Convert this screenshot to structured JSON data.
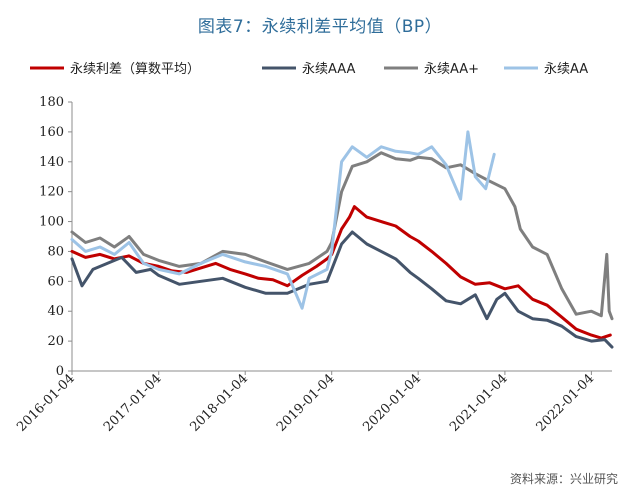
{
  "title": "图表7：永续利差平均值（BP）",
  "source": "资料来源：兴业研究",
  "chart_data": {
    "type": "line",
    "x_type": "date",
    "x_ticks": [
      "2016-01-04",
      "2017-01-04",
      "2018-01-04",
      "2019-01-04",
      "2020-01-04",
      "2021-01-04",
      "2022-01-04"
    ],
    "ylim": [
      0,
      180
    ],
    "y_ticks": [
      0,
      20,
      40,
      60,
      80,
      100,
      120,
      140,
      160,
      180
    ],
    "xlim": [
      "2016-01-04",
      "2022-04-01"
    ],
    "legend_position": "top",
    "grid": false,
    "series": [
      {
        "name": "永续利差（算数平均）",
        "color": "#c00000",
        "width": 3,
        "points": [
          [
            "2016-01-04",
            80
          ],
          [
            "2016-03-01",
            76
          ],
          [
            "2016-05-01",
            78
          ],
          [
            "2016-07-01",
            75
          ],
          [
            "2016-09-01",
            77
          ],
          [
            "2016-11-01",
            72
          ],
          [
            "2017-01-04",
            70
          ],
          [
            "2017-03-01",
            67
          ],
          [
            "2017-05-01",
            66
          ],
          [
            "2017-07-01",
            69
          ],
          [
            "2017-09-01",
            72
          ],
          [
            "2017-11-01",
            68
          ],
          [
            "2018-01-04",
            65
          ],
          [
            "2018-03-01",
            62
          ],
          [
            "2018-05-01",
            61
          ],
          [
            "2018-07-01",
            57
          ],
          [
            "2018-09-01",
            64
          ],
          [
            "2018-11-01",
            70
          ],
          [
            "2018-12-15",
            75
          ],
          [
            "2019-01-04",
            78
          ],
          [
            "2019-02-15",
            95
          ],
          [
            "2019-03-20",
            103
          ],
          [
            "2019-04-10",
            110
          ],
          [
            "2019-06-01",
            103
          ],
          [
            "2019-08-01",
            100
          ],
          [
            "2019-10-01",
            97
          ],
          [
            "2019-12-01",
            90
          ],
          [
            "2020-01-04",
            87
          ],
          [
            "2020-03-01",
            80
          ],
          [
            "2020-05-01",
            72
          ],
          [
            "2020-07-01",
            63
          ],
          [
            "2020-09-01",
            58
          ],
          [
            "2020-11-01",
            59
          ],
          [
            "2021-01-04",
            55
          ],
          [
            "2021-03-01",
            57
          ],
          [
            "2021-05-01",
            48
          ],
          [
            "2021-07-01",
            44
          ],
          [
            "2021-09-01",
            36
          ],
          [
            "2021-11-01",
            28
          ],
          [
            "2022-01-04",
            24
          ],
          [
            "2022-02-15",
            22
          ],
          [
            "2022-03-25",
            24
          ]
        ]
      },
      {
        "name": "永续AAA",
        "color": "#44546a",
        "width": 3,
        "points": [
          [
            "2016-01-04",
            75
          ],
          [
            "2016-02-15",
            57
          ],
          [
            "2016-04-01",
            68
          ],
          [
            "2016-06-01",
            72
          ],
          [
            "2016-08-01",
            76
          ],
          [
            "2016-10-01",
            66
          ],
          [
            "2016-12-01",
            68
          ],
          [
            "2017-01-04",
            64
          ],
          [
            "2017-04-01",
            58
          ],
          [
            "2017-07-01",
            60
          ],
          [
            "2017-10-01",
            62
          ],
          [
            "2018-01-04",
            56
          ],
          [
            "2018-04-01",
            52
          ],
          [
            "2018-07-01",
            52
          ],
          [
            "2018-10-01",
            58
          ],
          [
            "2018-12-15",
            60
          ],
          [
            "2019-01-04",
            68
          ],
          [
            "2019-02-15",
            85
          ],
          [
            "2019-04-01",
            93
          ],
          [
            "2019-06-01",
            85
          ],
          [
            "2019-08-01",
            80
          ],
          [
            "2019-10-01",
            75
          ],
          [
            "2019-12-01",
            66
          ],
          [
            "2020-01-04",
            62
          ],
          [
            "2020-03-01",
            55
          ],
          [
            "2020-05-01",
            47
          ],
          [
            "2020-07-01",
            45
          ],
          [
            "2020-09-01",
            51
          ],
          [
            "2020-10-20",
            35
          ],
          [
            "2020-12-01",
            48
          ],
          [
            "2021-01-04",
            52
          ],
          [
            "2021-03-01",
            40
          ],
          [
            "2021-05-01",
            35
          ],
          [
            "2021-07-01",
            34
          ],
          [
            "2021-09-01",
            30
          ],
          [
            "2021-11-01",
            23
          ],
          [
            "2022-01-04",
            20
          ],
          [
            "2022-03-01",
            21
          ],
          [
            "2022-04-01",
            16
          ]
        ]
      },
      {
        "name": "永续AA+",
        "color": "#7f7f7f",
        "width": 3,
        "points": [
          [
            "2016-01-04",
            93
          ],
          [
            "2016-03-01",
            86
          ],
          [
            "2016-05-01",
            89
          ],
          [
            "2016-07-01",
            83
          ],
          [
            "2016-09-01",
            90
          ],
          [
            "2016-11-01",
            78
          ],
          [
            "2017-01-04",
            74
          ],
          [
            "2017-04-01",
            70
          ],
          [
            "2017-07-01",
            72
          ],
          [
            "2017-10-01",
            80
          ],
          [
            "2018-01-04",
            78
          ],
          [
            "2018-04-01",
            73
          ],
          [
            "2018-07-01",
            68
          ],
          [
            "2018-10-01",
            72
          ],
          [
            "2018-12-15",
            80
          ],
          [
            "2019-01-04",
            86
          ],
          [
            "2019-02-15",
            120
          ],
          [
            "2019-04-01",
            137
          ],
          [
            "2019-06-01",
            140
          ],
          [
            "2019-08-01",
            146
          ],
          [
            "2019-10-01",
            142
          ],
          [
            "2019-12-01",
            141
          ],
          [
            "2020-01-04",
            143
          ],
          [
            "2020-03-01",
            142
          ],
          [
            "2020-05-01",
            136
          ],
          [
            "2020-07-01",
            138
          ],
          [
            "2020-09-01",
            132
          ],
          [
            "2020-11-01",
            127
          ],
          [
            "2021-01-04",
            122
          ],
          [
            "2021-02-15",
            110
          ],
          [
            "2021-03-10",
            95
          ],
          [
            "2021-05-01",
            83
          ],
          [
            "2021-07-01",
            78
          ],
          [
            "2021-09-01",
            55
          ],
          [
            "2021-11-01",
            38
          ],
          [
            "2022-01-04",
            40
          ],
          [
            "2022-02-15",
            37
          ],
          [
            "2022-03-10",
            78
          ],
          [
            "2022-03-20",
            40
          ],
          [
            "2022-04-01",
            35
          ]
        ]
      },
      {
        "name": "永续AA",
        "color": "#9dc3e6",
        "width": 3,
        "points": [
          [
            "2016-01-04",
            88
          ],
          [
            "2016-03-01",
            80
          ],
          [
            "2016-05-01",
            83
          ],
          [
            "2016-07-01",
            78
          ],
          [
            "2016-09-01",
            86
          ],
          [
            "2016-11-01",
            72
          ],
          [
            "2017-01-04",
            68
          ],
          [
            "2017-04-01",
            65
          ],
          [
            "2017-07-01",
            72
          ],
          [
            "2017-10-01",
            78
          ],
          [
            "2018-01-04",
            73
          ],
          [
            "2018-04-01",
            70
          ],
          [
            "2018-07-01",
            65
          ],
          [
            "2018-09-01",
            42
          ],
          [
            "2018-10-01",
            62
          ],
          [
            "2018-12-15",
            68
          ],
          [
            "2019-01-04",
            80
          ],
          [
            "2019-02-15",
            140
          ],
          [
            "2019-04-01",
            150
          ],
          [
            "2019-06-01",
            143
          ],
          [
            "2019-08-01",
            150
          ],
          [
            "2019-10-01",
            147
          ],
          [
            "2019-12-01",
            146
          ],
          [
            "2020-01-04",
            145
          ],
          [
            "2020-03-01",
            150
          ],
          [
            "2020-05-01",
            138
          ],
          [
            "2020-07-01",
            115
          ],
          [
            "2020-08-01",
            160
          ],
          [
            "2020-09-01",
            130
          ],
          [
            "2020-10-15",
            122
          ],
          [
            "2020-11-20",
            145
          ]
        ]
      }
    ]
  }
}
